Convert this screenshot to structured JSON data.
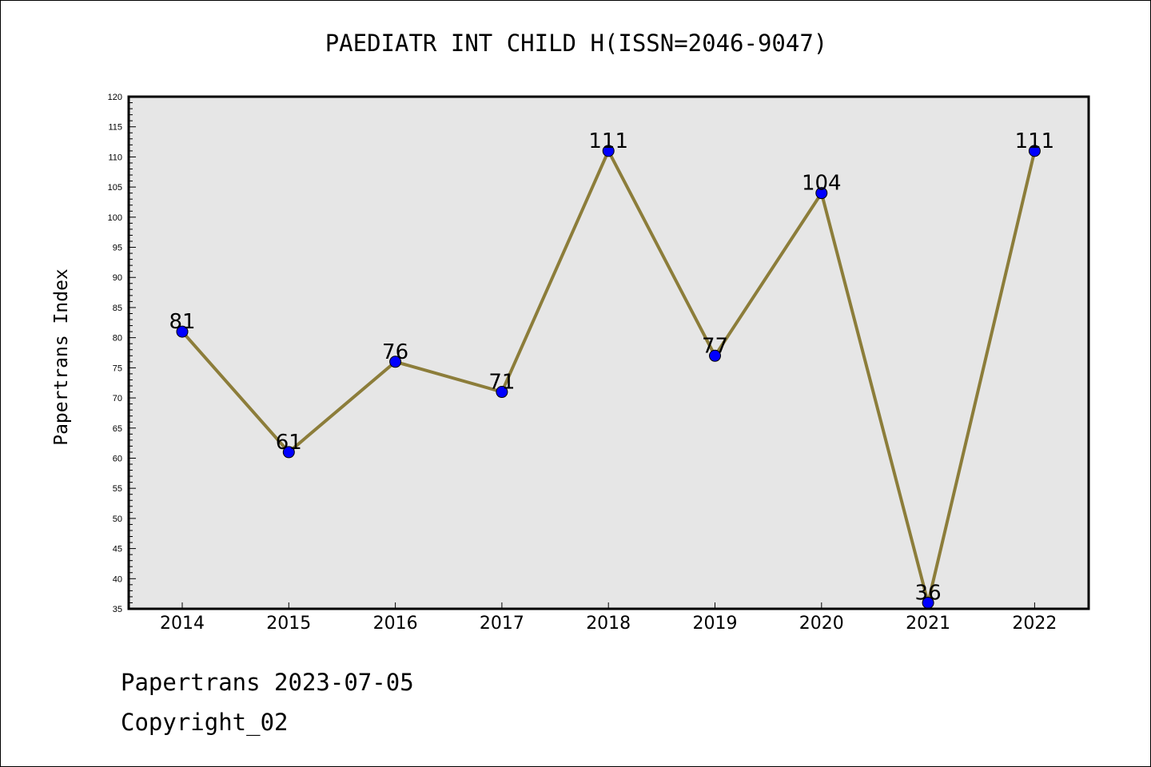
{
  "colors": {
    "plot_background": "#e6e6e6",
    "line": "#8c7d3a",
    "marker": "#0000ff",
    "marker_edge": "#000000"
  },
  "footer": {
    "line1": "Papertrans 2023-07-05",
    "line2": "Copyright_02"
  },
  "chart_data": {
    "type": "line",
    "title": "PAEDIATR INT CHILD H(ISSN=2046-9047)",
    "xlabel": "",
    "ylabel": "Papertrans Index",
    "categories": [
      "2014",
      "2015",
      "2016",
      "2017",
      "2018",
      "2019",
      "2020",
      "2021",
      "2022"
    ],
    "series": [
      {
        "values": [
          81,
          61,
          76,
          71,
          111,
          77,
          104,
          36,
          111
        ]
      }
    ],
    "data_labels": [
      "81",
      "61",
      "76",
      "71",
      "111",
      "77",
      "104",
      "36",
      "111"
    ],
    "ylim": [
      35,
      120
    ],
    "y_major_ticks": [
      35,
      40,
      45,
      50,
      55,
      60,
      65,
      70,
      75,
      80,
      85,
      90,
      95,
      100,
      105,
      110,
      115,
      120
    ],
    "y_minor_step": 1,
    "grid": false,
    "legend": "none"
  }
}
